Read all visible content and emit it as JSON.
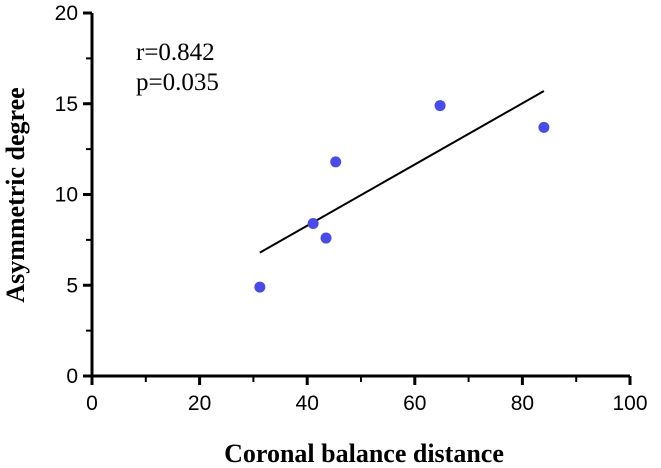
{
  "chart_data": {
    "type": "scatter",
    "title": "",
    "xlabel": "Coronal balance distance",
    "ylabel": "Asymmetric degree",
    "xlim": [
      0,
      100
    ],
    "ylim": [
      0,
      20
    ],
    "x_ticks": [
      "0",
      "20",
      "40",
      "60",
      "80",
      "100"
    ],
    "y_ticks": [
      "0",
      "5",
      "10",
      "15",
      "20"
    ],
    "grid": false,
    "legend": "none",
    "points": [
      {
        "x": 31.2,
        "y": 4.9
      },
      {
        "x": 41.1,
        "y": 8.4
      },
      {
        "x": 43.5,
        "y": 7.6
      },
      {
        "x": 45.3,
        "y": 11.8
      },
      {
        "x": 64.7,
        "y": 14.9
      },
      {
        "x": 84.0,
        "y": 13.7
      }
    ],
    "trendline": {
      "x": [
        31.2,
        84.0
      ],
      "y": [
        6.8,
        15.7
      ]
    },
    "annotations": [
      "r=0.842",
      "p=0.035"
    ],
    "colors": {
      "points": "#4a4ae8",
      "axes": "#000000",
      "trendline": "#000000"
    }
  }
}
